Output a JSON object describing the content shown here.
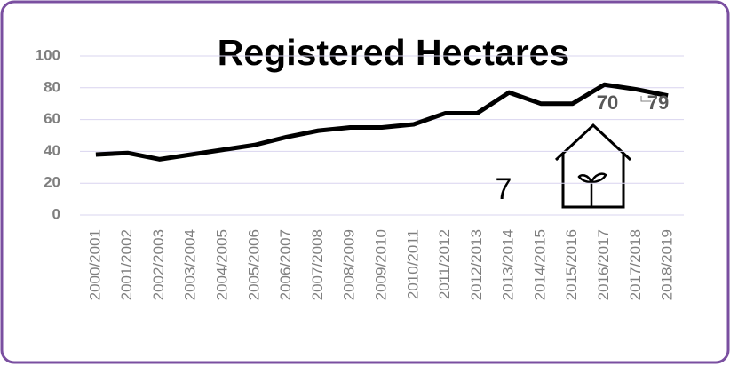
{
  "chart_data": {
    "type": "line",
    "title": "Registered Hectares",
    "categories": [
      "2000/2001",
      "2001/2002",
      "2002/2003",
      "2003/2004",
      "2004/2005",
      "2005/2006",
      "2006/2007",
      "2007/2008",
      "2008/2009",
      "2009/2010",
      "2010/2011",
      "2011/2012",
      "2012/2013",
      "2013/2014",
      "2014/2015",
      "2015/2016",
      "2016/2017",
      "2017/2018",
      "2018/2019"
    ],
    "values": [
      38,
      39,
      35,
      38,
      41,
      44,
      49,
      53,
      55,
      55,
      57,
      64,
      64,
      77,
      70,
      70,
      82,
      79,
      75
    ],
    "color": "#000000",
    "ylim": [
      0,
      100
    ],
    "yticks": [
      0,
      20,
      40,
      60,
      80,
      100
    ],
    "grid": true,
    "annotations": [
      "70",
      "79",
      "7"
    ]
  }
}
